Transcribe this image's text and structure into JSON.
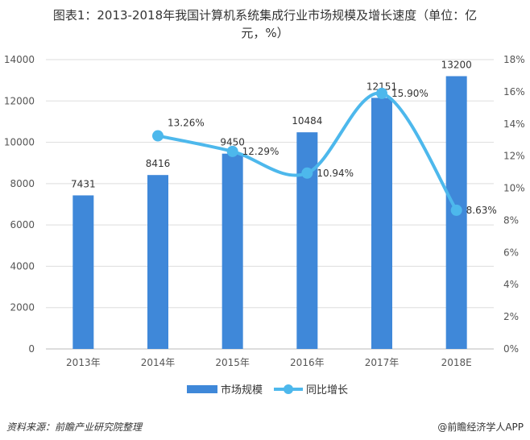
{
  "title_line1": "图表1：2013-2018年我国计算机系统集成行业市场规模及增长速度（单位：亿",
  "title_line2": "元，%）",
  "source": "资料来源：前瞻产业研究院整理",
  "brand": "@前瞻经济学人APP",
  "colors": {
    "bar": "#3f88d9",
    "line": "#4db8ec",
    "grid": "#dddddd"
  },
  "chart_data": {
    "type": "bar",
    "categories": [
      "2013年",
      "2014年",
      "2015年",
      "2016年",
      "2017年",
      "2018E"
    ],
    "series": [
      {
        "name": "市场规模",
        "type": "bar",
        "axis": "left",
        "values": [
          7431,
          8416,
          9450,
          10484,
          12151,
          13200
        ],
        "labels": [
          "7431",
          "8416",
          "9450",
          "10484",
          "12151",
          "13200"
        ]
      },
      {
        "name": "同比增长",
        "type": "line",
        "axis": "right",
        "smooth": true,
        "values": [
          null,
          13.26,
          12.29,
          10.94,
          15.9,
          8.63
        ],
        "labels": [
          "",
          "13.26%",
          "12.29%",
          "10.94%",
          "15.90%",
          "8.63%"
        ]
      }
    ],
    "ylim_left": [
      0,
      14000
    ],
    "yticks_left": [
      "0",
      "2000",
      "4000",
      "6000",
      "8000",
      "10000",
      "12000",
      "14000"
    ],
    "ylim_right": [
      0,
      18
    ],
    "yticks_right": [
      "0%",
      "2%",
      "4%",
      "6%",
      "8%",
      "10%",
      "12%",
      "14%",
      "16%",
      "18%"
    ],
    "grid": true,
    "legend": "bottom"
  }
}
